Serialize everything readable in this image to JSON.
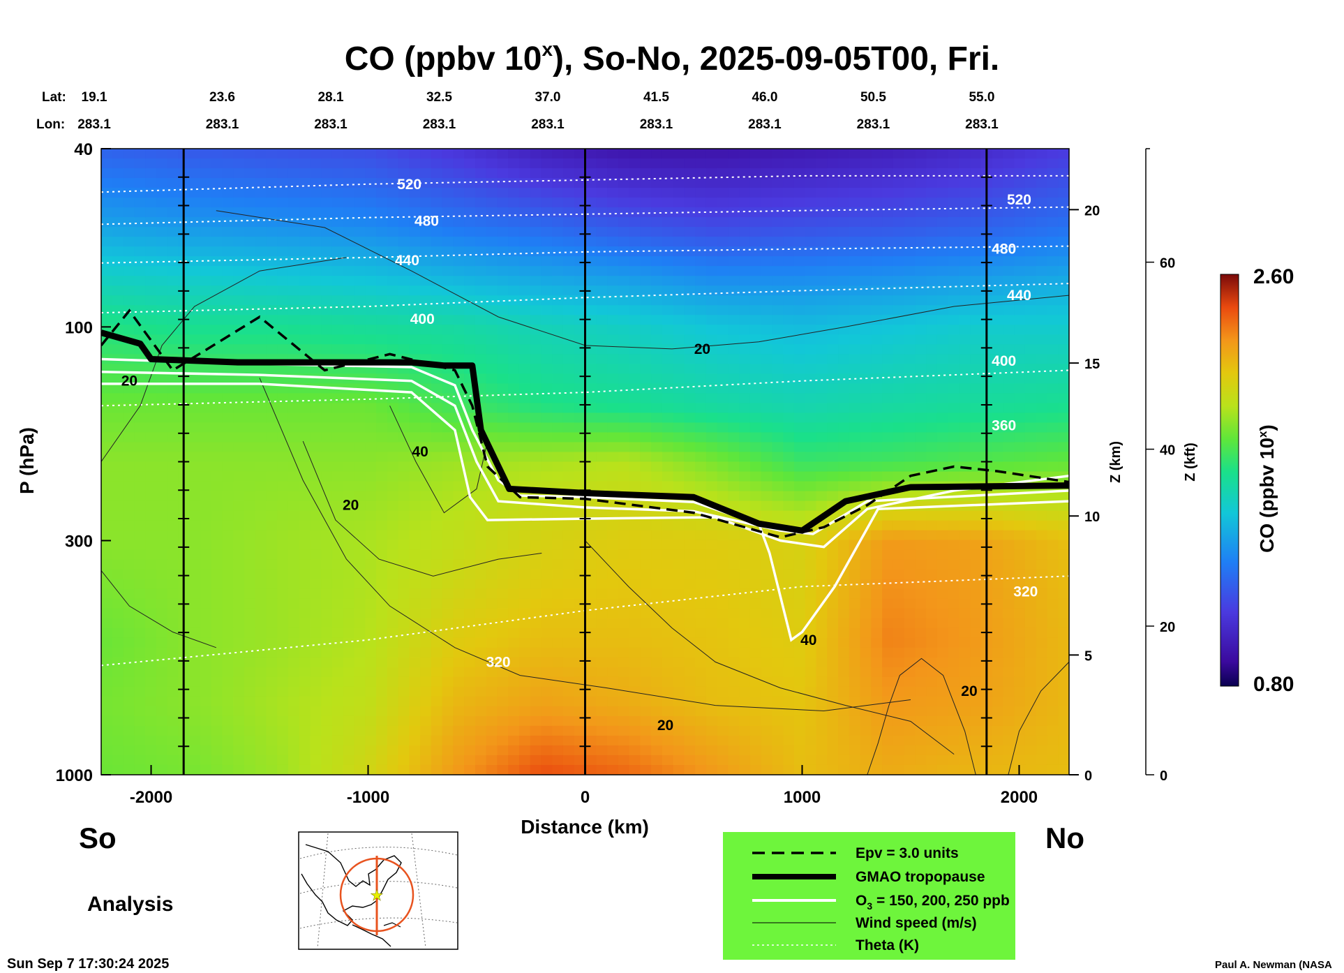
{
  "chart_data": {
    "type": "heatmap",
    "title": "CO (ppbv 10",
    "title_superscript": "x",
    "title_rest": "), So-No, 2025-09-05T00, Fri.",
    "xlabel": "Distance (km)",
    "ylabel": "P (hPa)",
    "xlim": [
      -2230,
      2230
    ],
    "x_ticks": [
      -2000,
      -1000,
      0,
      1000,
      2000
    ],
    "x_tick_labels": [
      "-2000",
      "-1000",
      "0",
      "1000",
      "2000"
    ],
    "y_scale": "log",
    "ylim": [
      1000,
      40
    ],
    "y_ticks": [
      40,
      100,
      300,
      1000
    ],
    "y_tick_labels": [
      "40",
      "100",
      "300",
      "1000"
    ],
    "lat_label": "Lat:",
    "lon_label": "Lon:",
    "lat_values": [
      "19.1",
      "23.6",
      "28.1",
      "32.5",
      "37.0",
      "41.5",
      "46.0",
      "50.5",
      "55.0"
    ],
    "lon_values": [
      "283.1",
      "283.1",
      "283.1",
      "283.1",
      "283.1",
      "283.1",
      "283.1",
      "283.1",
      "283.1"
    ],
    "lat_lon_distances": [
      -2230,
      -1730,
      -1230,
      -730,
      -230,
      270,
      770,
      1270,
      1770
    ],
    "z_km_label": "Z (km)",
    "z_km_ticks": [
      0,
      5,
      10,
      15,
      20
    ],
    "z_km_tick_labels": [
      "0",
      "5",
      "10",
      "15",
      "20"
    ],
    "z_kft_label": "Z (kft)",
    "z_kft_ticks": [
      0,
      20,
      40,
      60
    ],
    "z_kft_tick_labels": [
      "0",
      "20",
      "40",
      "60"
    ],
    "vertical_lines_km": [
      -1850,
      0,
      1850
    ],
    "colorbar": {
      "label": "CO (ppbv 10",
      "label_superscript": "x",
      "label_close": ")",
      "min": 0.8,
      "max": 2.6,
      "min_label": "0.80",
      "max_label": "2.60"
    },
    "co_field": {
      "x_km": [
        -2200,
        -1800,
        -1400,
        -1000,
        -600,
        -200,
        200,
        600,
        1000,
        1400,
        1800,
        2200
      ],
      "p_hPa": [
        40,
        60,
        80,
        100,
        150,
        200,
        300,
        500,
        700,
        1000
      ],
      "log10_ppbv": [
        [
          1.25,
          1.22,
          1.2,
          1.18,
          1.1,
          1.0,
          0.95,
          0.95,
          0.97,
          1.0,
          1.05,
          1.12
        ],
        [
          1.45,
          1.42,
          1.4,
          1.38,
          1.32,
          1.28,
          1.22,
          1.18,
          1.2,
          1.22,
          1.25,
          1.3
        ],
        [
          1.62,
          1.6,
          1.58,
          1.56,
          1.52,
          1.48,
          1.45,
          1.4,
          1.4,
          1.42,
          1.45,
          1.48
        ],
        [
          1.75,
          1.72,
          1.72,
          1.7,
          1.68,
          1.63,
          1.6,
          1.55,
          1.52,
          1.55,
          1.58,
          1.58
        ],
        [
          1.9,
          1.9,
          1.9,
          1.9,
          1.82,
          1.75,
          1.72,
          1.68,
          1.65,
          1.68,
          1.7,
          1.72
        ],
        [
          1.95,
          1.95,
          1.95,
          1.95,
          1.98,
          2.0,
          2.02,
          1.92,
          1.8,
          1.82,
          1.85,
          1.88
        ],
        [
          1.95,
          1.95,
          1.98,
          2.0,
          2.05,
          2.12,
          2.15,
          2.15,
          2.12,
          2.3,
          2.28,
          2.2
        ],
        [
          1.9,
          1.95,
          1.98,
          2.02,
          2.15,
          2.2,
          2.2,
          2.18,
          2.15,
          2.35,
          2.3,
          2.22
        ],
        [
          1.92,
          1.95,
          2.0,
          2.05,
          2.22,
          2.28,
          2.25,
          2.2,
          2.18,
          2.3,
          2.28,
          2.22
        ],
        [
          1.9,
          1.92,
          1.98,
          2.1,
          2.3,
          2.45,
          2.4,
          2.3,
          2.2,
          2.25,
          2.22,
          2.2
        ]
      ]
    },
    "theta_contours": [
      {
        "level": "520",
        "x_km": [
          -2230,
          -1000,
          0,
          1000,
          2230
        ],
        "p_hPa": [
          50,
          48,
          47,
          46,
          46
        ]
      },
      {
        "level": "480",
        "x_km": [
          -2230,
          -1000,
          0,
          1000,
          2230
        ],
        "p_hPa": [
          59,
          57,
          56,
          55,
          54
        ]
      },
      {
        "level": "440",
        "x_km": [
          -2230,
          -1000,
          0,
          1000,
          2230
        ],
        "p_hPa": [
          72,
          70,
          68,
          67,
          66
        ]
      },
      {
        "level": "400",
        "x_km": [
          -2230,
          -1000,
          0,
          1000,
          2230
        ],
        "p_hPa": [
          93,
          90,
          86,
          83,
          80
        ]
      },
      {
        "level": "360",
        "x_km": [
          -2230,
          -1000,
          0,
          1000,
          2230
        ],
        "p_hPa": [
          150,
          145,
          140,
          132,
          125
        ]
      },
      {
        "level": "320",
        "x_km": [
          -2230,
          -1000,
          0,
          1000,
          2230
        ],
        "p_hPa": [
          570,
          500,
          430,
          380,
          360
        ]
      }
    ],
    "theta_labels": [
      {
        "text": "520",
        "x_km": -810,
        "p_hPa": 48
      },
      {
        "text": "480",
        "x_km": -730,
        "p_hPa": 58
      },
      {
        "text": "440",
        "x_km": -820,
        "p_hPa": 71
      },
      {
        "text": "400",
        "x_km": -750,
        "p_hPa": 96
      },
      {
        "text": "520",
        "x_km": 2000,
        "p_hPa": 52
      },
      {
        "text": "480",
        "x_km": 1930,
        "p_hPa": 67
      },
      {
        "text": "440",
        "x_km": 2000,
        "p_hPa": 85
      },
      {
        "text": "400",
        "x_km": 1930,
        "p_hPa": 119
      },
      {
        "text": "360",
        "x_km": 1930,
        "p_hPa": 166
      },
      {
        "text": "320",
        "x_km": 2030,
        "p_hPa": 390
      },
      {
        "text": "320",
        "x_km": -400,
        "p_hPa": 560
      }
    ],
    "tropopause": {
      "x_km": [
        -2230,
        -2050,
        -2000,
        -1600,
        -1200,
        -800,
        -650,
        -520,
        -480,
        -350,
        0,
        500,
        800,
        1000,
        1200,
        1500,
        2230
      ],
      "p_hPa": [
        103,
        109,
        118,
        120,
        120,
        120,
        122,
        122,
        170,
        230,
        235,
        240,
        275,
        285,
        245,
        228,
        226
      ]
    },
    "ozone_contours": [
      {
        "x_km": [
          -2230,
          -1500,
          -800,
          -600,
          -520,
          -400,
          -300,
          0,
          500,
          800,
          850,
          950,
          1000,
          1150,
          1350,
          2230
        ],
        "p_hPa": [
          118,
          121,
          123,
          135,
          170,
          220,
          238,
          240,
          246,
          275,
          320,
          500,
          480,
          380,
          255,
          245
        ]
      },
      {
        "x_km": [
          -2230,
          -1500,
          -800,
          -600,
          -500,
          -400,
          0,
          500,
          900,
          1050,
          1300,
          2230
        ],
        "p_hPa": [
          126,
          128,
          132,
          150,
          200,
          245,
          253,
          258,
          285,
          290,
          245,
          232
        ]
      },
      {
        "x_km": [
          -2230,
          -1500,
          -800,
          -600,
          -530,
          -450,
          0,
          600,
          900,
          1100,
          1300,
          1700,
          2230
        ],
        "p_hPa": [
          134,
          134,
          140,
          170,
          240,
          270,
          268,
          266,
          300,
          310,
          255,
          232,
          215
        ]
      }
    ],
    "epv_contour": {
      "x_km": [
        -2230,
        -2100,
        -1900,
        -1500,
        -1200,
        -900,
        -600,
        -520,
        -450,
        -300,
        0,
        500,
        900,
        1100,
        1300,
        1500,
        1700,
        1900,
        2230
      ],
      "p_hPa": [
        110,
        92,
        125,
        95,
        125,
        115,
        125,
        150,
        205,
        240,
        242,
        260,
        295,
        280,
        250,
        215,
        205,
        210,
        222
      ]
    },
    "wind_labels": [
      {
        "text": "20",
        "x_km": -2100,
        "p_hPa": 132
      },
      {
        "text": "20",
        "x_km": 540,
        "p_hPa": 112
      },
      {
        "text": "40",
        "x_km": -760,
        "p_hPa": 190
      },
      {
        "text": "20",
        "x_km": -1080,
        "p_hPa": 250
      },
      {
        "text": "40",
        "x_km": 1030,
        "p_hPa": 500
      },
      {
        "text": "20",
        "x_km": 1770,
        "p_hPa": 650
      },
      {
        "text": "20",
        "x_km": 370,
        "p_hPa": 775
      }
    ],
    "legend": {
      "items": [
        {
          "label": "Epv = 3.0 units",
          "style": "dashed-black"
        },
        {
          "label": "GMAO tropopause",
          "style": "thick-black"
        },
        {
          "label": "O",
          "sub": "3",
          "rest": " = 150, 200, 250 ppb",
          "style": "white"
        },
        {
          "label": "Wind speed (m/s)",
          "style": "thin-black"
        },
        {
          "label": "Theta (K)",
          "style": "dotted-white"
        }
      ]
    }
  },
  "direction_left": "So",
  "direction_right": "No",
  "analysis_label": "Analysis",
  "timestamp": "Sun Sep  7 17:30:24 2025",
  "credit": "Paul A. Newman (NASA",
  "colors": {
    "legend_bg": "#6ef53c",
    "map_orange": "#e8531f",
    "star": "#e8f000"
  }
}
